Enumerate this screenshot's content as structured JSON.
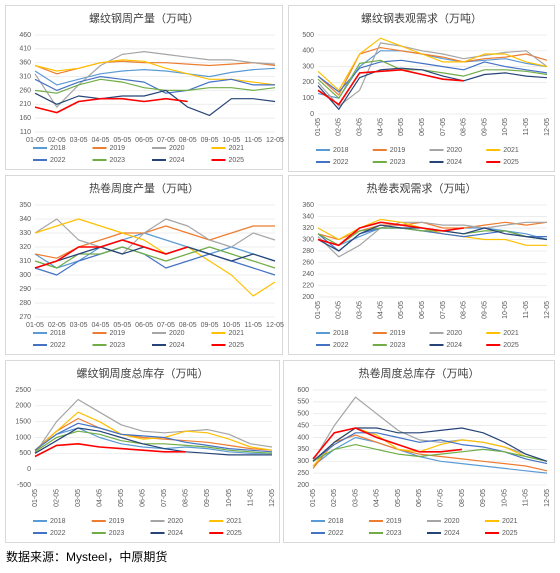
{
  "chart_data": [
    {
      "type": "line",
      "title": "螺纹钢周产量（万吨）",
      "categories": [
        "01-05",
        "02-05",
        "03-05",
        "04-05",
        "05-05",
        "06-05",
        "07-05",
        "08-05",
        "09-05",
        "10-05",
        "11-05",
        "12-05"
      ],
      "ylim": [
        110,
        460
      ],
      "yticks": [
        110,
        160,
        210,
        260,
        310,
        360,
        410,
        460
      ],
      "grid": true,
      "series": [
        {
          "name": "2018",
          "color": "#5b9bd5",
          "values": [
            330,
            280,
            300,
            320,
            330,
            335,
            330,
            320,
            310,
            325,
            335,
            340
          ]
        },
        {
          "name": "2019",
          "color": "#ed7d31",
          "values": [
            350,
            320,
            340,
            360,
            365,
            360,
            360,
            355,
            350,
            355,
            360,
            350
          ]
        },
        {
          "name": "2020",
          "color": "#a5a5a5",
          "values": [
            320,
            200,
            280,
            350,
            390,
            400,
            390,
            380,
            370,
            370,
            360,
            355
          ]
        },
        {
          "name": "2021",
          "color": "#ffc000",
          "values": [
            350,
            330,
            340,
            360,
            370,
            365,
            340,
            320,
            300,
            300,
            290,
            280
          ]
        },
        {
          "name": "2022",
          "color": "#4472c4",
          "values": [
            300,
            260,
            290,
            310,
            300,
            290,
            250,
            260,
            290,
            300,
            280,
            280
          ]
        },
        {
          "name": "2023",
          "color": "#70ad47",
          "values": [
            260,
            250,
            280,
            300,
            290,
            270,
            260,
            260,
            270,
            270,
            260,
            270
          ]
        },
        {
          "name": "2024",
          "color": "#264478",
          "values": [
            250,
            210,
            240,
            230,
            240,
            240,
            260,
            200,
            170,
            230,
            230,
            220
          ]
        },
        {
          "name": "2025",
          "color": "#ff0000",
          "values": [
            200,
            180,
            220,
            230,
            230,
            220,
            230,
            220,
            null,
            null,
            null,
            null
          ]
        }
      ]
    },
    {
      "type": "line",
      "title": "螺纹钢表观需求（万吨）",
      "categories": [
        "01-05",
        "02-05",
        "03-05",
        "04-05",
        "05-05",
        "06-05",
        "07-05",
        "08-05",
        "09-05",
        "10-05",
        "11-05",
        "12-05"
      ],
      "ylim": [
        0,
        500
      ],
      "yticks": [
        0,
        100,
        200,
        300,
        400,
        500
      ],
      "grid": true,
      "series": [
        {
          "name": "2018",
          "color": "#5b9bd5",
          "values": [
            130,
            100,
            300,
            400,
            400,
            380,
            350,
            330,
            340,
            350,
            320,
            300
          ]
        },
        {
          "name": "2019",
          "color": "#ed7d31",
          "values": [
            240,
            120,
            380,
            420,
            400,
            380,
            360,
            330,
            350,
            360,
            380,
            340
          ]
        },
        {
          "name": "2020",
          "color": "#a5a5a5",
          "values": [
            200,
            50,
            150,
            450,
            430,
            400,
            380,
            350,
            370,
            390,
            400,
            300
          ]
        },
        {
          "name": "2021",
          "color": "#ffc000",
          "values": [
            270,
            150,
            380,
            480,
            430,
            380,
            330,
            330,
            380,
            380,
            330,
            300
          ]
        },
        {
          "name": "2022",
          "color": "#4472c4",
          "values": [
            240,
            140,
            290,
            330,
            340,
            320,
            300,
            280,
            330,
            300,
            280,
            260
          ]
        },
        {
          "name": "2023",
          "color": "#70ad47",
          "values": [
            220,
            100,
            320,
            340,
            280,
            280,
            260,
            240,
            280,
            280,
            270,
            250
          ]
        },
        {
          "name": "2024",
          "color": "#264478",
          "values": [
            180,
            30,
            230,
            280,
            290,
            280,
            240,
            210,
            250,
            260,
            240,
            230
          ]
        },
        {
          "name": "2025",
          "color": "#ff0000",
          "values": [
            150,
            60,
            260,
            270,
            280,
            250,
            220,
            210,
            null,
            null,
            null,
            null
          ]
        }
      ]
    },
    {
      "type": "line",
      "title": "热卷周度产量（万吨）",
      "categories": [
        "01-05",
        "02-05",
        "03-05",
        "04-05",
        "05-05",
        "06-05",
        "07-05",
        "08-05",
        "09-05",
        "10-05",
        "11-05",
        "12-05"
      ],
      "ylim": [
        270,
        350
      ],
      "yticks": [
        270,
        280,
        290,
        300,
        310,
        320,
        330,
        340,
        350
      ],
      "grid": true,
      "series": [
        {
          "name": "2018",
          "color": "#5b9bd5",
          "values": [
            315,
            305,
            310,
            320,
            325,
            330,
            325,
            320,
            315,
            320,
            315,
            310
          ]
        },
        {
          "name": "2019",
          "color": "#ed7d31",
          "values": [
            315,
            312,
            320,
            325,
            330,
            330,
            335,
            330,
            325,
            330,
            335,
            335
          ]
        },
        {
          "name": "2020",
          "color": "#a5a5a5",
          "values": [
            330,
            340,
            325,
            320,
            315,
            330,
            340,
            335,
            325,
            320,
            330,
            325
          ]
        },
        {
          "name": "2021",
          "color": "#ffc000",
          "values": [
            330,
            335,
            340,
            335,
            330,
            325,
            315,
            320,
            310,
            300,
            285,
            295
          ]
        },
        {
          "name": "2022",
          "color": "#4472c4",
          "values": [
            305,
            300,
            310,
            315,
            320,
            315,
            305,
            310,
            315,
            310,
            305,
            300
          ]
        },
        {
          "name": "2023",
          "color": "#70ad47",
          "values": [
            310,
            305,
            315,
            315,
            320,
            315,
            310,
            315,
            320,
            315,
            310,
            305
          ]
        },
        {
          "name": "2024",
          "color": "#264478",
          "values": [
            305,
            310,
            315,
            320,
            315,
            320,
            315,
            320,
            315,
            310,
            315,
            310
          ]
        },
        {
          "name": "2025",
          "color": "#ff0000",
          "values": [
            305,
            310,
            320,
            320,
            325,
            320,
            315,
            320,
            null,
            null,
            null,
            null
          ]
        }
      ]
    },
    {
      "type": "line",
      "title": "热卷表观需求（万吨）",
      "categories": [
        "01-05",
        "02-05",
        "03-05",
        "04-05",
        "05-05",
        "06-05",
        "07-05",
        "08-05",
        "09-05",
        "10-05",
        "11-05",
        "12-05"
      ],
      "ylim": [
        200,
        360
      ],
      "yticks": [
        200,
        220,
        240,
        260,
        280,
        300,
        320,
        340,
        360
      ],
      "grid": true,
      "series": [
        {
          "name": "2018",
          "color": "#5b9bd5",
          "values": [
            300,
            290,
            305,
            320,
            320,
            315,
            315,
            320,
            320,
            315,
            310,
            300
          ]
        },
        {
          "name": "2019",
          "color": "#ed7d31",
          "values": [
            310,
            300,
            315,
            325,
            325,
            330,
            320,
            320,
            325,
            330,
            325,
            330
          ]
        },
        {
          "name": "2020",
          "color": "#a5a5a5",
          "values": [
            305,
            270,
            290,
            320,
            330,
            330,
            325,
            325,
            320,
            325,
            330,
            330
          ]
        },
        {
          "name": "2021",
          "color": "#ffc000",
          "values": [
            320,
            300,
            320,
            335,
            330,
            320,
            310,
            305,
            300,
            300,
            290,
            290
          ]
        },
        {
          "name": "2022",
          "color": "#4472c4",
          "values": [
            310,
            280,
            310,
            320,
            320,
            315,
            310,
            305,
            310,
            315,
            305,
            305
          ]
        },
        {
          "name": "2023",
          "color": "#70ad47",
          "values": [
            310,
            290,
            315,
            320,
            320,
            315,
            315,
            310,
            315,
            315,
            305,
            300
          ]
        },
        {
          "name": "2024",
          "color": "#264478",
          "values": [
            300,
            280,
            310,
            325,
            320,
            320,
            315,
            310,
            320,
            310,
            305,
            300
          ]
        },
        {
          "name": "2025",
          "color": "#ff0000",
          "values": [
            300,
            290,
            320,
            330,
            325,
            320,
            315,
            320,
            null,
            null,
            null,
            null
          ]
        }
      ]
    },
    {
      "type": "line",
      "title": "螺纹钢周度总库存（万吨）",
      "categories": [
        "01-05",
        "02-05",
        "03-05",
        "04-05",
        "05-05",
        "06-05",
        "07-05",
        "08-05",
        "09-05",
        "10-05",
        "11-05",
        "12-05"
      ],
      "ylim": [
        -500,
        2500
      ],
      "yticks": [
        -500,
        0,
        500,
        1000,
        1500,
        2000,
        2500
      ],
      "grid": true,
      "series": [
        {
          "name": "2018",
          "color": "#5b9bd5",
          "values": [
            600,
            1100,
            1300,
            1000,
            800,
            700,
            650,
            700,
            650,
            550,
            500,
            500
          ]
        },
        {
          "name": "2019",
          "color": "#ed7d31",
          "values": [
            600,
            1200,
            1600,
            1300,
            1100,
            1000,
            950,
            900,
            850,
            750,
            650,
            600
          ]
        },
        {
          "name": "2020",
          "color": "#a5a5a5",
          "values": [
            500,
            1500,
            2200,
            1800,
            1400,
            1200,
            1150,
            1200,
            1250,
            1100,
            800,
            700
          ]
        },
        {
          "name": "2021",
          "color": "#ffc000",
          "values": [
            550,
            1200,
            1800,
            1500,
            1100,
            950,
            1000,
            1200,
            1150,
            950,
            700,
            600
          ]
        },
        {
          "name": "2022",
          "color": "#4472c4",
          "values": [
            600,
            1100,
            1450,
            1300,
            1100,
            1050,
            1000,
            850,
            750,
            650,
            600,
            550
          ]
        },
        {
          "name": "2023",
          "color": "#70ad47",
          "values": [
            550,
            1000,
            1200,
            1100,
            900,
            800,
            800,
            750,
            700,
            600,
            550,
            500
          ]
        },
        {
          "name": "2024",
          "color": "#264478",
          "values": [
            500,
            900,
            1300,
            1200,
            1000,
            800,
            650,
            550,
            500,
            450,
            450,
            450
          ]
        },
        {
          "name": "2025",
          "color": "#ff0000",
          "values": [
            400,
            750,
            800,
            700,
            650,
            600,
            550,
            550,
            null,
            null,
            null,
            null
          ]
        }
      ]
    },
    {
      "type": "line",
      "title": "热卷周度总库存（万吨）",
      "categories": [
        "01-05",
        "02-05",
        "03-05",
        "04-05",
        "05-05",
        "06-05",
        "07-05",
        "08-05",
        "09-05",
        "10-05",
        "11-05",
        "12-05"
      ],
      "ylim": [
        200,
        600
      ],
      "yticks": [
        200,
        250,
        300,
        350,
        400,
        450,
        500,
        550,
        600
      ],
      "grid": true,
      "series": [
        {
          "name": "2018",
          "color": "#5b9bd5",
          "values": [
            280,
            350,
            400,
            380,
            350,
            320,
            300,
            290,
            280,
            270,
            260,
            250
          ]
        },
        {
          "name": "2019",
          "color": "#ed7d31",
          "values": [
            270,
            380,
            410,
            380,
            350,
            330,
            320,
            310,
            300,
            290,
            280,
            260
          ]
        },
        {
          "name": "2020",
          "color": "#a5a5a5",
          "values": [
            300,
            450,
            570,
            500,
            430,
            390,
            380,
            390,
            380,
            360,
            330,
            300
          ]
        },
        {
          "name": "2021",
          "color": "#ffc000",
          "values": [
            280,
            380,
            440,
            410,
            350,
            340,
            370,
            390,
            380,
            360,
            320,
            300
          ]
        },
        {
          "name": "2022",
          "color": "#4472c4",
          "values": [
            300,
            370,
            420,
            420,
            400,
            380,
            390,
            370,
            360,
            340,
            310,
            290
          ]
        },
        {
          "name": "2023",
          "color": "#70ad47",
          "values": [
            300,
            350,
            370,
            350,
            330,
            320,
            330,
            340,
            350,
            340,
            320,
            300
          ]
        },
        {
          "name": "2024",
          "color": "#264478",
          "values": [
            300,
            380,
            440,
            440,
            420,
            420,
            430,
            440,
            420,
            380,
            330,
            300
          ]
        },
        {
          "name": "2025",
          "color": "#ff0000",
          "values": [
            310,
            420,
            440,
            400,
            370,
            340,
            340,
            350,
            null,
            null,
            null,
            null
          ]
        }
      ]
    }
  ],
  "source": "数据来源：Mysteel，中原期货"
}
